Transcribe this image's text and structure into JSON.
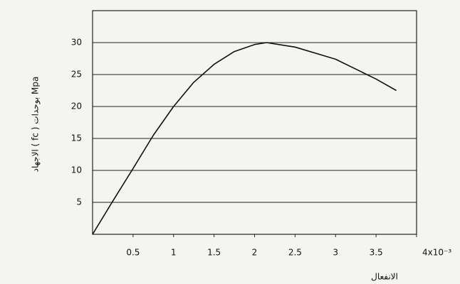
{
  "chart_data": {
    "type": "line",
    "y_label": "الاجهاد ( fc ) بوحدات Mpa",
    "x_label": "الانفعال",
    "x": [
      0,
      0.25,
      0.5,
      0.75,
      1,
      1.25,
      1.5,
      1.75,
      2,
      2.15,
      2.5,
      3,
      3.5,
      3.75
    ],
    "series": [
      {
        "color": "#111111",
        "values": [
          0,
          5.2,
          10.3,
          15.5,
          20,
          23.8,
          26.6,
          28.6,
          29.7,
          30,
          29.3,
          27.4,
          24.3,
          22.5
        ]
      }
    ],
    "xlim": [
      0,
      4
    ],
    "ylim": [
      0,
      35
    ],
    "xticks": [
      0.5,
      1,
      1.5,
      2,
      2.5,
      3,
      3.5,
      {
        "value": 4,
        "label": "4x10⁻³"
      }
    ],
    "yticks": [
      5,
      10,
      15,
      20,
      25,
      30
    ],
    "grid": true
  }
}
